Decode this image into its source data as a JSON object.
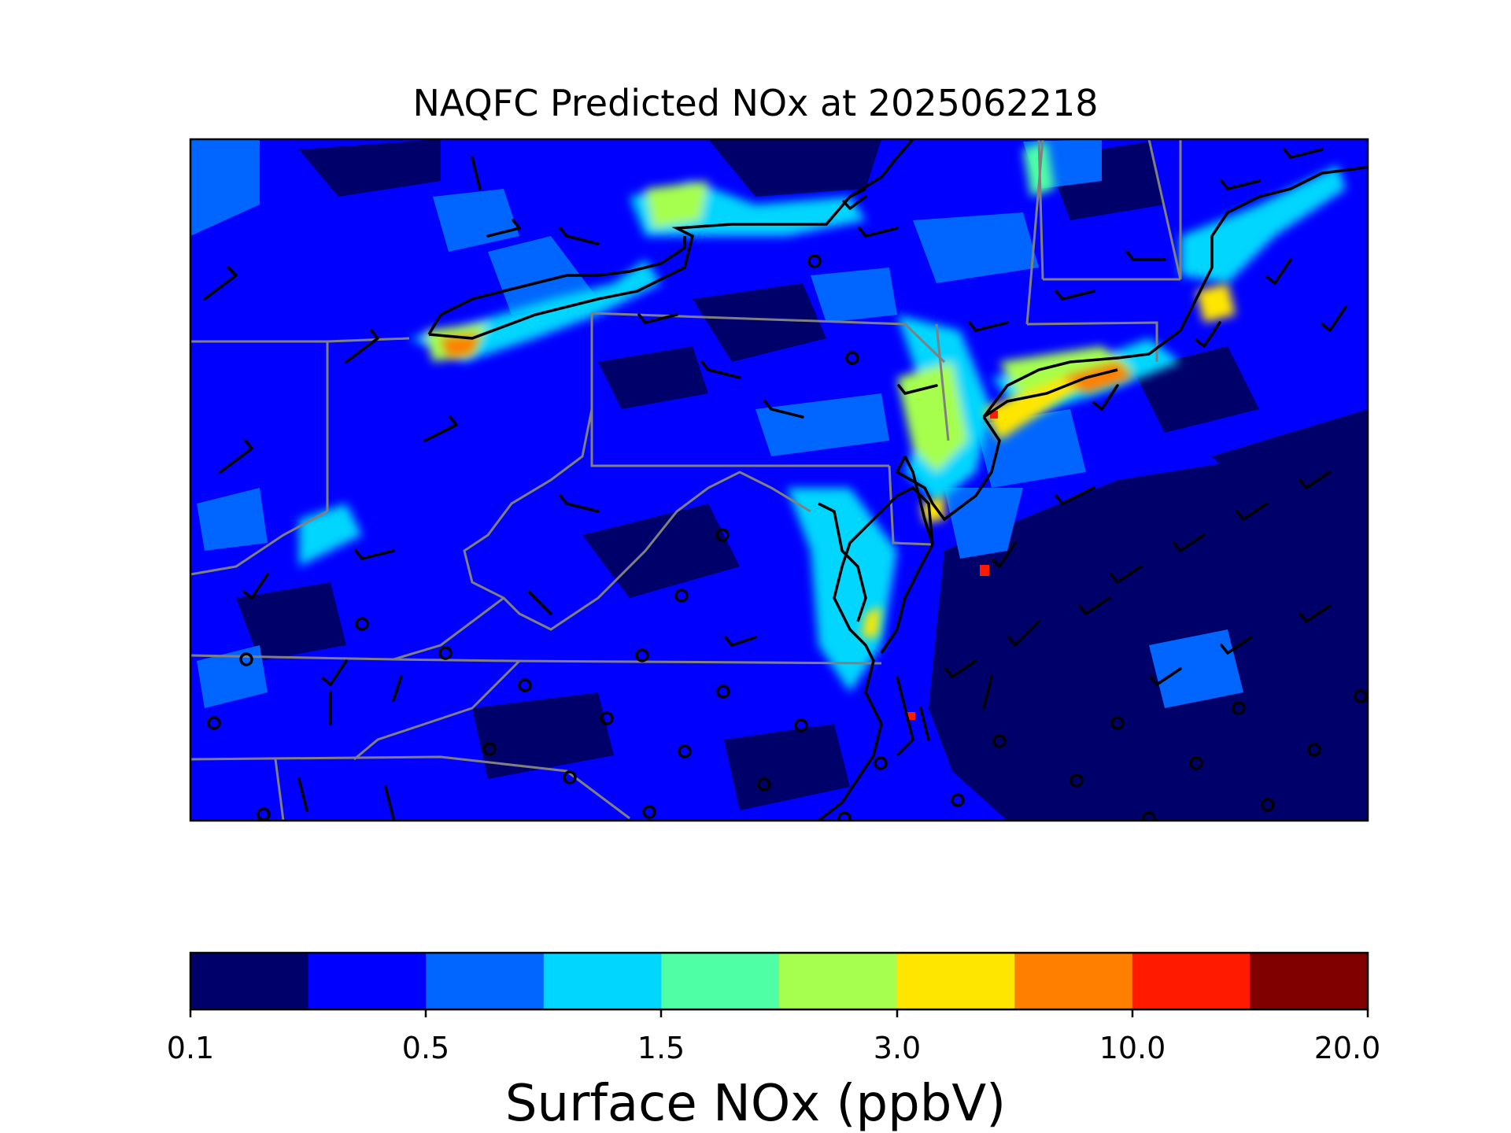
{
  "title": "NAQFC Predicted NOx at 2025062218",
  "colorbar": {
    "label": "Surface NOx (ppbV)",
    "tick_labels": [
      "0.1",
      "0.5",
      "1.5",
      "3.0",
      "10.0",
      "20.0"
    ],
    "colors": [
      "#00006a",
      "#0000ff",
      "#0066ff",
      "#00d6ff",
      "#4effa6",
      "#a6ff4e",
      "#ffe600",
      "#ff7f00",
      "#ff1a00",
      "#800000"
    ]
  },
  "map": {
    "region": "Mid-Atlantic / Northeast United States",
    "base_color": "#0000ff",
    "coast_color": "#000000",
    "state_border_color": "#808080",
    "wind_barb_color": "#000000"
  }
}
